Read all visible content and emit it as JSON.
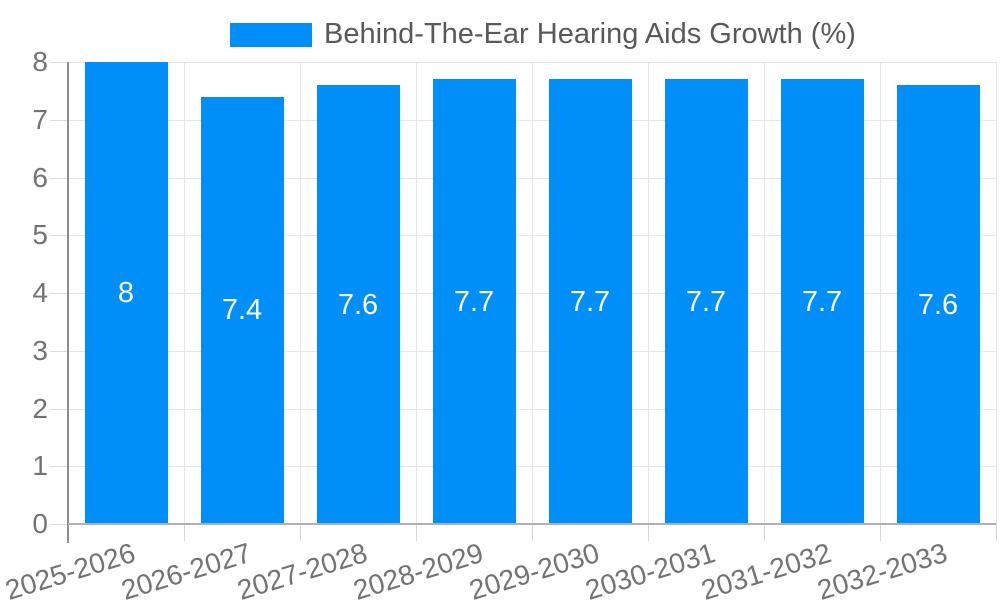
{
  "legend": {
    "label": "Behind-The-Ear Hearing Aids Growth (%)",
    "swatch_color": "#008FF8"
  },
  "chart_data": {
    "type": "bar",
    "title": "Behind-The-Ear Hearing Aids Growth (%)",
    "categories": [
      "2025-2026",
      "2026-2027",
      "2027-2028",
      "2028-2029",
      "2029-2030",
      "2030-2031",
      "2031-2032",
      "2032-2033"
    ],
    "values": [
      8,
      7.4,
      7.6,
      7.7,
      7.7,
      7.7,
      7.7,
      7.6
    ],
    "value_labels": [
      "8",
      "7.4",
      "7.6",
      "7.7",
      "7.7",
      "7.7",
      "7.7",
      "7.6"
    ],
    "xlabel": "",
    "ylabel": "",
    "ylim": [
      0,
      8
    ],
    "yticks": [
      0,
      1,
      2,
      3,
      4,
      5,
      6,
      7,
      8
    ],
    "grid": true,
    "legend_position": "top",
    "colors": {
      "bar": "#008FF8",
      "grid": "#e6e6e6",
      "y_axis_line": "#8f8f8f",
      "x_axis_line": "#b0b0b0",
      "tick_label": "#737373",
      "value_label": "#ffffff",
      "legend_text": "#58595b"
    }
  }
}
